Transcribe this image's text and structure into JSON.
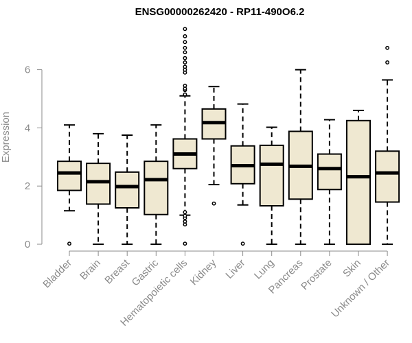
{
  "chart_data": {
    "type": "boxplot",
    "title": "ENSG00000262420 - RP11-490O6.2",
    "xlabel": "",
    "ylabel": "Expression",
    "ylim": [
      0,
      7.5
    ],
    "yticks": [
      0,
      2,
      4,
      6
    ],
    "categories": [
      "Bladder",
      "Brain",
      "Breast",
      "Gastric",
      "Hematopoietic cells",
      "Kidney",
      "Liver",
      "Lung",
      "Pancreas",
      "Prostate",
      "Skin",
      "Unknown / Other"
    ],
    "boxes": [
      {
        "name": "Bladder",
        "whisker_low": 1.15,
        "q1": 1.85,
        "median": 2.45,
        "q3": 2.85,
        "whisker_high": 4.1,
        "outliers": [
          0.02
        ]
      },
      {
        "name": "Brain",
        "whisker_low": 0.0,
        "q1": 1.38,
        "median": 2.15,
        "q3": 2.78,
        "whisker_high": 3.8,
        "outliers": []
      },
      {
        "name": "Breast",
        "whisker_low": 0.0,
        "q1": 1.25,
        "median": 1.98,
        "q3": 2.48,
        "whisker_high": 3.75,
        "outliers": []
      },
      {
        "name": "Gastric",
        "whisker_low": 0.0,
        "q1": 1.02,
        "median": 2.22,
        "q3": 2.85,
        "whisker_high": 4.1,
        "outliers": []
      },
      {
        "name": "Hematopoietic cells",
        "whisker_low": 1.0,
        "q1": 2.6,
        "median": 3.1,
        "q3": 3.62,
        "whisker_high": 5.1,
        "outliers": [
          0.02,
          0.68,
          0.78,
          0.9,
          0.98,
          1.1,
          5.15,
          5.3,
          5.35,
          5.45,
          5.9,
          6.0,
          6.1,
          6.25,
          6.4,
          6.6,
          6.75,
          6.95,
          7.15,
          7.4
        ]
      },
      {
        "name": "Kidney",
        "whisker_low": 2.05,
        "q1": 3.62,
        "median": 4.18,
        "q3": 4.65,
        "whisker_high": 5.42,
        "outliers": [
          1.4
        ]
      },
      {
        "name": "Liver",
        "whisker_low": 1.35,
        "q1": 2.08,
        "median": 2.7,
        "q3": 3.38,
        "whisker_high": 4.82,
        "outliers": [
          0.02
        ]
      },
      {
        "name": "Lung",
        "whisker_low": 0.0,
        "q1": 1.32,
        "median": 2.75,
        "q3": 3.4,
        "whisker_high": 4.02,
        "outliers": []
      },
      {
        "name": "Pancreas",
        "whisker_low": 0.0,
        "q1": 1.55,
        "median": 2.68,
        "q3": 3.88,
        "whisker_high": 6.0,
        "outliers": []
      },
      {
        "name": "Prostate",
        "whisker_low": 0.0,
        "q1": 1.88,
        "median": 2.6,
        "q3": 3.1,
        "whisker_high": 4.28,
        "outliers": []
      },
      {
        "name": "Skin",
        "whisker_low": 0.0,
        "q1": 0.0,
        "median": 2.32,
        "q3": 4.25,
        "whisker_high": 4.6,
        "outliers": []
      },
      {
        "name": "Unknown / Other",
        "whisker_low": 0.0,
        "q1": 1.45,
        "median": 2.45,
        "q3": 3.2,
        "whisker_high": 5.65,
        "outliers": [
          6.25,
          6.75
        ]
      }
    ],
    "colors": {
      "box_fill": "#efe8d1",
      "box_stroke": "#000000",
      "axis": "#8a8a8a"
    },
    "grid": false,
    "legend": "none"
  }
}
